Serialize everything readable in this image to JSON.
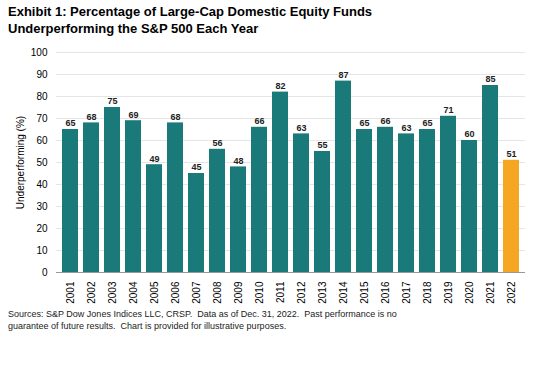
{
  "chart_data": {
    "type": "bar",
    "title": "Exhibit 1: Percentage of Large-Cap Domestic Equity Funds",
    "subtitle": "Underperforming the S&P 500 Each Year",
    "caption": "Sources: S&P Dow Jones Indices LLC, CRSP.  Data as of Dec. 31, 2022.  Past performance is no\nguarantee of future results.  Chart is provided for illustrative purposes.",
    "ylabel": "Underperforming (%)",
    "categories": [
      "2001",
      "2002",
      "2003",
      "2004",
      "2005",
      "2006",
      "2007",
      "2008",
      "2009",
      "2010",
      "2011",
      "2012",
      "2013",
      "2014",
      "2015",
      "2016",
      "2017",
      "2018",
      "2019",
      "2020",
      "2021",
      "2022"
    ],
    "values": [
      65,
      68,
      75,
      69,
      49,
      68,
      45,
      56,
      48,
      66,
      82,
      63,
      55,
      87,
      65,
      66,
      63,
      65,
      71,
      60,
      85,
      51
    ],
    "colors": [
      "#1a7a7a",
      "#1a7a7a",
      "#1a7a7a",
      "#1a7a7a",
      "#1a7a7a",
      "#1a7a7a",
      "#1a7a7a",
      "#1a7a7a",
      "#1a7a7a",
      "#1a7a7a",
      "#1a7a7a",
      "#1a7a7a",
      "#1a7a7a",
      "#1a7a7a",
      "#1a7a7a",
      "#1a7a7a",
      "#1a7a7a",
      "#1a7a7a",
      "#1a7a7a",
      "#1a7a7a",
      "#1a7a7a",
      "#f5a623"
    ],
    "ylim": [
      0,
      100
    ],
    "yticks": [
      0,
      10,
      20,
      30,
      40,
      50,
      60,
      70,
      80,
      90,
      100
    ],
    "grid": true,
    "data_labels": true
  }
}
